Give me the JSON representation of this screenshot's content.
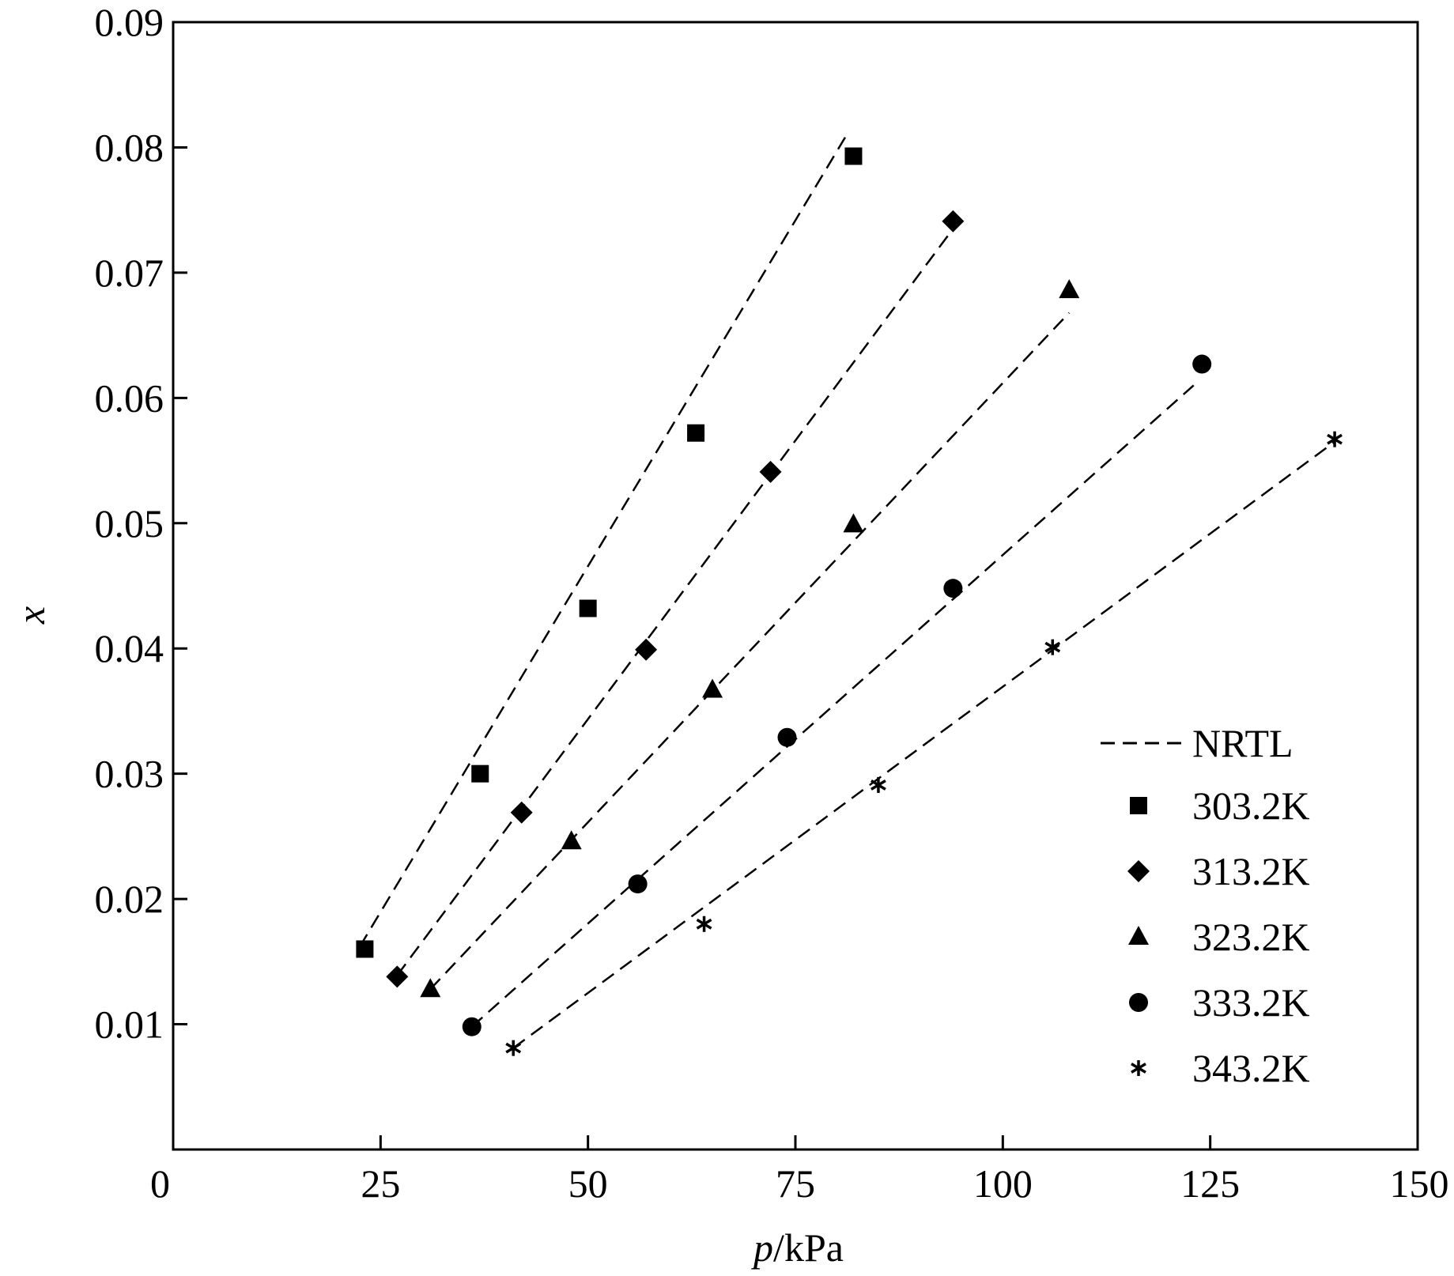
{
  "chart_data": {
    "type": "scatter",
    "title": "",
    "xlabel": {
      "var": "p",
      "unit": "/kPa"
    },
    "ylabel": "x",
    "xlim": [
      0,
      150
    ],
    "ylim": [
      0,
      0.09
    ],
    "xticks": [
      0,
      25,
      50,
      75,
      100,
      125,
      150
    ],
    "xtick_labels": [
      "0",
      "25",
      "50",
      "75",
      "100",
      "125",
      "150"
    ],
    "yticks": [
      0.01,
      0.02,
      0.03,
      0.04,
      0.05,
      0.06,
      0.07,
      0.08,
      0.09
    ],
    "ytick_labels": [
      "0.01",
      "0.02",
      "0.03",
      "0.04",
      "0.05",
      "0.06",
      "0.07",
      "0.08",
      "0.09"
    ],
    "grid": false,
    "legend_position": "right",
    "model_line": {
      "name": "NRTL",
      "style": "dashed"
    },
    "series": [
      {
        "name": "303.2K",
        "marker": "square",
        "x": [
          23.1,
          37.0,
          50.0,
          63.0,
          82.0
        ],
        "y": [
          0.016,
          0.03,
          0.0432,
          0.0572,
          0.0793
        ],
        "fit": [
          [
            22.5,
            0.0162
          ],
          [
            81.0,
            0.0808
          ]
        ]
      },
      {
        "name": "313.2K",
        "marker": "diamond",
        "x": [
          27.0,
          42.0,
          57.0,
          72.0,
          94.0
        ],
        "y": [
          0.0138,
          0.0269,
          0.0399,
          0.0541,
          0.0741
        ],
        "fit": [
          [
            27.0,
            0.0139
          ],
          [
            94.0,
            0.0735
          ]
        ]
      },
      {
        "name": "323.2K",
        "marker": "triangle",
        "x": [
          31.0,
          48.0,
          65.0,
          82.0,
          108.0
        ],
        "y": [
          0.0128,
          0.0246,
          0.0367,
          0.0499,
          0.0686
        ],
        "fit": [
          [
            31.0,
            0.0128
          ],
          [
            108.0,
            0.0668
          ]
        ]
      },
      {
        "name": "333.2K",
        "marker": "circle",
        "x": [
          36.0,
          56.0,
          74.0,
          94.0,
          124.0
        ],
        "y": [
          0.0098,
          0.0212,
          0.0329,
          0.0448,
          0.0627
        ],
        "fit": [
          [
            36.0,
            0.0098
          ],
          [
            123.0,
            0.061
          ]
        ]
      },
      {
        "name": "343.2K",
        "marker": "asterisk",
        "x": [
          41.0,
          64.0,
          85.0,
          106.0,
          140.0
        ],
        "y": [
          0.0081,
          0.018,
          0.0291,
          0.0401,
          0.0567
        ],
        "fit": [
          [
            41.0,
            0.0081
          ],
          [
            140.0,
            0.0565
          ]
        ]
      }
    ]
  }
}
